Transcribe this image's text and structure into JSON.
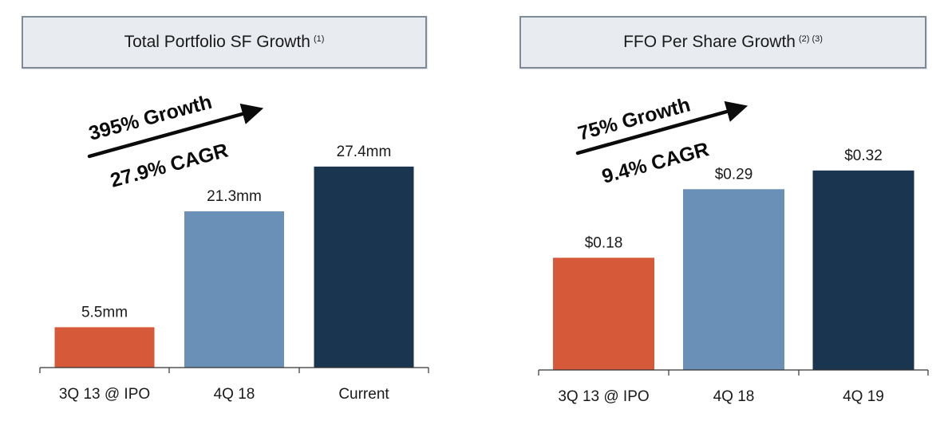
{
  "chart_data": [
    {
      "type": "bar",
      "title": "Total Portfolio SF Growth",
      "title_note": "(1)",
      "categories": [
        "3Q 13 @ IPO",
        "4Q 18",
        "Current"
      ],
      "values": [
        5.5,
        21.3,
        27.4
      ],
      "value_labels": [
        "5.5mm",
        "21.3mm",
        "27.4mm"
      ],
      "colors": [
        "#d65a3a",
        "#6b90b8",
        "#1a3550"
      ],
      "ylim": [
        0,
        30
      ],
      "grid": false,
      "annotations": {
        "growth": "395% Growth",
        "cagr": "27.9% CAGR"
      }
    },
    {
      "type": "bar",
      "title": "FFO Per Share Growth",
      "title_note": "(2) (3)",
      "categories": [
        "3Q 13 @ IPO",
        "4Q 18",
        "4Q 19"
      ],
      "values": [
        0.18,
        0.29,
        0.32
      ],
      "value_labels": [
        "$0.18",
        "$0.29",
        "$0.32"
      ],
      "colors": [
        "#d65a3a",
        "#6b90b8",
        "#1a3550"
      ],
      "ylim": [
        0,
        0.33
      ],
      "grid": false,
      "annotations": {
        "growth": "75% Growth",
        "cagr": "9.4% CAGR"
      }
    }
  ]
}
